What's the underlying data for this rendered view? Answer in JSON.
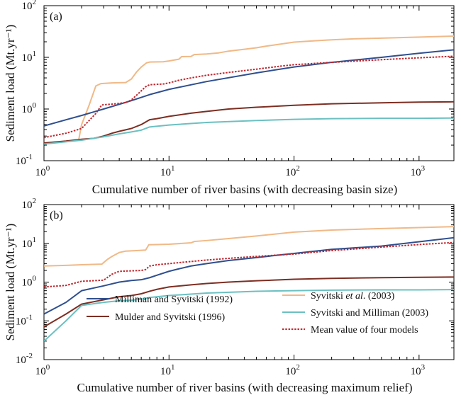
{
  "chart_data": [
    {
      "type": "line",
      "panel_label": "(a)",
      "xlabel": "Cumulative number of river basins (with decreasing basin size)",
      "ylabel": "Sediment load (Mt.yr⁻¹)",
      "xscale": "log",
      "yscale": "log",
      "xlim": [
        1,
        1900
      ],
      "ylim": [
        0.1,
        100
      ],
      "x_ticks": [
        {
          "value": 1,
          "base": "10",
          "exp": "0"
        },
        {
          "value": 10,
          "base": "10",
          "exp": "1"
        },
        {
          "value": 100,
          "base": "10",
          "exp": "2"
        },
        {
          "value": 1000,
          "base": "10",
          "exp": "3"
        }
      ],
      "y_ticks": [
        {
          "value": 0.1,
          "base": "10",
          "exp": "-1"
        },
        {
          "value": 1,
          "base": "10",
          "exp": "0"
        },
        {
          "value": 10,
          "base": "10",
          "exp": "1"
        },
        {
          "value": 100,
          "base": "10",
          "exp": "2"
        }
      ],
      "grid": false,
      "series": [
        {
          "id": "syvitski2003",
          "color": "#f0b987",
          "style": "solid",
          "points": [
            [
              1.9,
              0.26
            ],
            [
              2.0,
              0.5
            ],
            [
              2.3,
              1.2
            ],
            [
              2.6,
              2.8
            ],
            [
              2.85,
              3.1
            ],
            [
              3.5,
              3.2
            ],
            [
              4.5,
              3.25
            ],
            [
              5.0,
              3.8
            ],
            [
              5.5,
              5.2
            ],
            [
              6.0,
              6.5
            ],
            [
              6.6,
              7.8
            ],
            [
              7.0,
              8.1
            ],
            [
              9.0,
              8.2
            ],
            [
              10.0,
              8.5
            ],
            [
              12.0,
              9.2
            ],
            [
              12.6,
              10.3
            ],
            [
              15.0,
              10.4
            ],
            [
              15.9,
              11.3
            ],
            [
              20.0,
              11.6
            ],
            [
              25.0,
              12.2
            ],
            [
              30.0,
              13.2
            ],
            [
              40.0,
              14.3
            ],
            [
              50.0,
              15.3
            ],
            [
              60.0,
              16.5
            ],
            [
              80.0,
              18.2
            ],
            [
              100.0,
              19.7
            ],
            [
              150.0,
              21.0
            ],
            [
              200.0,
              21.8
            ],
            [
              300.0,
              22.8
            ],
            [
              500.0,
              23.5
            ],
            [
              800.0,
              24.3
            ],
            [
              1200.0,
              25.0
            ],
            [
              1900.0,
              25.8
            ]
          ]
        },
        {
          "id": "milliman1992",
          "color": "#2f4f8f",
          "style": "solid",
          "points": [
            [
              1.0,
              0.47
            ],
            [
              1.5,
              0.62
            ],
            [
              2.0,
              0.75
            ],
            [
              3.0,
              1.0
            ],
            [
              5.0,
              1.45
            ],
            [
              7.0,
              1.9
            ],
            [
              10.0,
              2.4
            ],
            [
              20.0,
              3.4
            ],
            [
              50.0,
              5.0
            ],
            [
              100.0,
              6.5
            ],
            [
              200.0,
              8.0
            ],
            [
              500.0,
              10.0
            ],
            [
              1000.0,
              12.0
            ],
            [
              1900.0,
              14.0
            ]
          ]
        },
        {
          "id": "mean",
          "color": "#c1272d",
          "style": "dotted",
          "points": [
            [
              1.0,
              0.28
            ],
            [
              1.5,
              0.34
            ],
            [
              2.0,
              0.42
            ],
            [
              2.6,
              0.82
            ],
            [
              2.9,
              1.2
            ],
            [
              3.6,
              1.25
            ],
            [
              4.5,
              1.33
            ],
            [
              5.0,
              1.5
            ],
            [
              5.7,
              2.0
            ],
            [
              6.5,
              2.7
            ],
            [
              7.0,
              2.95
            ],
            [
              8.0,
              3.0
            ],
            [
              9.0,
              3.05
            ],
            [
              10.0,
              3.2
            ],
            [
              12.0,
              3.6
            ],
            [
              15.0,
              4.0
            ],
            [
              20.0,
              4.5
            ],
            [
              30.0,
              5.1
            ],
            [
              50.0,
              5.9
            ],
            [
              80.0,
              6.8
            ],
            [
              100.0,
              7.2
            ],
            [
              200.0,
              8.0
            ],
            [
              500.0,
              9.0
            ],
            [
              1000.0,
              9.8
            ],
            [
              1900.0,
              10.5
            ]
          ]
        },
        {
          "id": "mulder1996",
          "color": "#7d2e22",
          "style": "solid",
          "points": [
            [
              1.0,
              0.22
            ],
            [
              1.5,
              0.24
            ],
            [
              2.0,
              0.26
            ],
            [
              2.5,
              0.27
            ],
            [
              3.0,
              0.3
            ],
            [
              3.5,
              0.34
            ],
            [
              4.0,
              0.37
            ],
            [
              5.0,
              0.42
            ],
            [
              6.0,
              0.5
            ],
            [
              7.0,
              0.62
            ],
            [
              8.0,
              0.65
            ],
            [
              10.0,
              0.72
            ],
            [
              15.0,
              0.83
            ],
            [
              20.0,
              0.9
            ],
            [
              30.0,
              1.0
            ],
            [
              50.0,
              1.08
            ],
            [
              100.0,
              1.18
            ],
            [
              200.0,
              1.26
            ],
            [
              500.0,
              1.32
            ],
            [
              1000.0,
              1.36
            ],
            [
              1900.0,
              1.38
            ]
          ]
        },
        {
          "id": "syvitski_milliman2003",
          "color": "#6bc0c2",
          "style": "solid",
          "points": [
            [
              1.0,
              0.21
            ],
            [
              2.0,
              0.25
            ],
            [
              3.0,
              0.29
            ],
            [
              4.0,
              0.33
            ],
            [
              5.0,
              0.36
            ],
            [
              6.0,
              0.39
            ],
            [
              7.0,
              0.45
            ],
            [
              10.0,
              0.49
            ],
            [
              20.0,
              0.55
            ],
            [
              50.0,
              0.6
            ],
            [
              100.0,
              0.63
            ],
            [
              200.0,
              0.65
            ],
            [
              500.0,
              0.66
            ],
            [
              1000.0,
              0.66
            ],
            [
              1900.0,
              0.67
            ]
          ]
        }
      ]
    },
    {
      "type": "line",
      "panel_label": "(b)",
      "xlabel": "Cumulative number of river basins (with decreasing maximum relief)",
      "ylabel": "Sediment load (Mt.yr⁻¹)",
      "xscale": "log",
      "yscale": "log",
      "xlim": [
        1,
        1900
      ],
      "ylim": [
        0.01,
        100
      ],
      "x_ticks": [
        {
          "value": 1,
          "base": "10",
          "exp": "0"
        },
        {
          "value": 10,
          "base": "10",
          "exp": "1"
        },
        {
          "value": 100,
          "base": "10",
          "exp": "2"
        },
        {
          "value": 1000,
          "base": "10",
          "exp": "3"
        }
      ],
      "y_ticks": [
        {
          "value": 0.01,
          "base": "10",
          "exp": "-2"
        },
        {
          "value": 0.1,
          "base": "10",
          "exp": "-1"
        },
        {
          "value": 1,
          "base": "10",
          "exp": "0"
        },
        {
          "value": 10,
          "base": "10",
          "exp": "1"
        },
        {
          "value": 100,
          "base": "10",
          "exp": "2"
        }
      ],
      "grid": false,
      "legend": [
        {
          "series": "milliman1992",
          "label": "Milliman and Syvitski (1992)",
          "color": "#2f4f8f",
          "style": "solid"
        },
        {
          "series": "mulder1996",
          "label": "Mulder and Syvitski (1996)",
          "color": "#7d2e22",
          "style": "solid"
        },
        {
          "series": "syvitski2003",
          "label_pre": "Syvitski ",
          "label_it": "et al",
          "label_post": ". (2003)",
          "color": "#f0b987",
          "style": "solid"
        },
        {
          "series": "syvitski_milliman2003",
          "label": "Syvitski and Milliman (2003)",
          "color": "#6bc0c2",
          "style": "solid"
        },
        {
          "series": "mean",
          "label": "Mean value of four models",
          "color": "#c1272d",
          "style": "dotted"
        }
      ],
      "series": [
        {
          "id": "syvitski2003",
          "color": "#f0b987",
          "style": "solid",
          "points": [
            [
              1.0,
              2.6
            ],
            [
              1.5,
              2.7
            ],
            [
              2.0,
              2.8
            ],
            [
              2.9,
              2.9
            ],
            [
              3.2,
              3.8
            ],
            [
              3.5,
              4.6
            ],
            [
              4.0,
              5.8
            ],
            [
              4.5,
              6.3
            ],
            [
              5.5,
              6.5
            ],
            [
              6.0,
              6.6
            ],
            [
              6.5,
              6.7
            ],
            [
              6.9,
              9.2
            ],
            [
              8.0,
              9.3
            ],
            [
              10.0,
              9.5
            ],
            [
              15.0,
              10.3
            ],
            [
              16.0,
              11.2
            ],
            [
              20.0,
              11.8
            ],
            [
              30.0,
              13.3
            ],
            [
              50.0,
              15.5
            ],
            [
              100.0,
              19.5
            ],
            [
              200.0,
              22.0
            ],
            [
              500.0,
              24.0
            ],
            [
              1000.0,
              25.5
            ],
            [
              1900.0,
              27.0
            ]
          ]
        },
        {
          "id": "milliman1992",
          "color": "#2f4f8f",
          "style": "solid",
          "points": [
            [
              1.0,
              0.15
            ],
            [
              1.5,
              0.3
            ],
            [
              2.0,
              0.6
            ],
            [
              3.0,
              0.8
            ],
            [
              4.0,
              1.0
            ],
            [
              5.0,
              1.1
            ],
            [
              6.0,
              1.15
            ],
            [
              7.0,
              1.3
            ],
            [
              8.0,
              1.5
            ],
            [
              10.0,
              1.9
            ],
            [
              12.0,
              2.2
            ],
            [
              15.0,
              2.6
            ],
            [
              20.0,
              3.0
            ],
            [
              30.0,
              3.6
            ],
            [
              50.0,
              4.3
            ],
            [
              100.0,
              5.5
            ],
            [
              200.0,
              7.0
            ],
            [
              500.0,
              8.5
            ],
            [
              1000.0,
              11.0
            ],
            [
              1900.0,
              14.0
            ]
          ]
        },
        {
          "id": "mean",
          "color": "#c1272d",
          "style": "dotted",
          "points": [
            [
              1.0,
              0.75
            ],
            [
              1.5,
              0.82
            ],
            [
              2.0,
              1.05
            ],
            [
              3.0,
              1.12
            ],
            [
              3.5,
              1.6
            ],
            [
              4.0,
              1.9
            ],
            [
              5.0,
              1.95
            ],
            [
              6.0,
              2.0
            ],
            [
              6.5,
              2.1
            ],
            [
              7.0,
              2.6
            ],
            [
              8.0,
              2.8
            ],
            [
              10.0,
              3.0
            ],
            [
              15.0,
              3.4
            ],
            [
              20.0,
              3.7
            ],
            [
              30.0,
              4.1
            ],
            [
              50.0,
              4.6
            ],
            [
              100.0,
              5.3
            ],
            [
              200.0,
              6.5
            ],
            [
              500.0,
              8.0
            ],
            [
              1000.0,
              9.3
            ],
            [
              1900.0,
              10.5
            ]
          ]
        },
        {
          "id": "mulder1996",
          "color": "#7d2e22",
          "style": "solid",
          "points": [
            [
              1.0,
              0.07
            ],
            [
              1.5,
              0.15
            ],
            [
              2.0,
              0.27
            ],
            [
              3.0,
              0.35
            ],
            [
              4.0,
              0.42
            ],
            [
              5.0,
              0.45
            ],
            [
              6.0,
              0.5
            ],
            [
              7.0,
              0.58
            ],
            [
              8.0,
              0.65
            ],
            [
              10.0,
              0.75
            ],
            [
              15.0,
              0.85
            ],
            [
              20.0,
              0.92
            ],
            [
              30.0,
              1.0
            ],
            [
              50.0,
              1.08
            ],
            [
              100.0,
              1.18
            ],
            [
              200.0,
              1.25
            ],
            [
              500.0,
              1.3
            ],
            [
              1000.0,
              1.33
            ],
            [
              1900.0,
              1.35
            ]
          ]
        },
        {
          "id": "syvitski_milliman2003",
          "color": "#6bc0c2",
          "style": "solid",
          "points": [
            [
              1.0,
              0.03
            ],
            [
              1.5,
              0.1
            ],
            [
              2.0,
              0.25
            ],
            [
              3.0,
              0.3
            ],
            [
              4.0,
              0.33
            ],
            [
              5.0,
              0.34
            ],
            [
              6.0,
              0.36
            ],
            [
              7.0,
              0.4
            ],
            [
              10.0,
              0.45
            ],
            [
              20.0,
              0.52
            ],
            [
              50.0,
              0.58
            ],
            [
              100.0,
              0.6
            ],
            [
              200.0,
              0.62
            ],
            [
              500.0,
              0.63
            ],
            [
              1000.0,
              0.63
            ],
            [
              1900.0,
              0.64
            ]
          ]
        }
      ]
    }
  ]
}
